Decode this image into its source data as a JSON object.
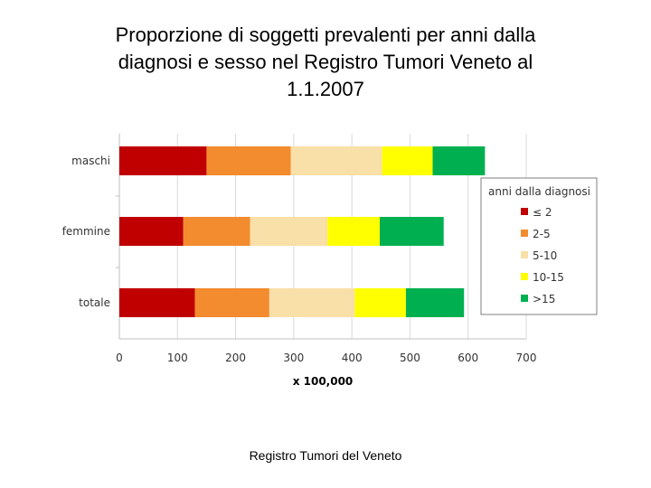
{
  "title_lines": [
    "Proporzione di soggetti prevalenti per anni dalla",
    "diagnosi e sesso nel Registro Tumori Veneto al",
    "1.1.2007"
  ],
  "footer": "Registro Tumori del Veneto",
  "chart_data": {
    "type": "bar",
    "orientation": "horizontal",
    "stacked": true,
    "categories": [
      "maschi",
      "femmine",
      "totale"
    ],
    "series": [
      {
        "name": "≤ 2",
        "color": "#c00000",
        "values": [
          150,
          110,
          130
        ]
      },
      {
        "name": "2-5",
        "color": "#f38b2f",
        "values": [
          145,
          115,
          128
        ]
      },
      {
        "name": "5-10",
        "color": "#f9dfa8",
        "values": [
          157,
          133,
          147
        ]
      },
      {
        "name": "10-15",
        "color": "#ffff00",
        "values": [
          87,
          90,
          88
        ]
      },
      {
        "name": ">15",
        "color": "#00b050",
        "values": [
          90,
          110,
          100
        ]
      }
    ],
    "xlabel": "x 100,000",
    "xlim": [
      0,
      700
    ],
    "xticks": [
      0,
      100,
      200,
      300,
      400,
      500,
      600,
      700
    ],
    "legend_title": "anni dalla diagnosi",
    "legend_position": "right",
    "grid": true
  }
}
